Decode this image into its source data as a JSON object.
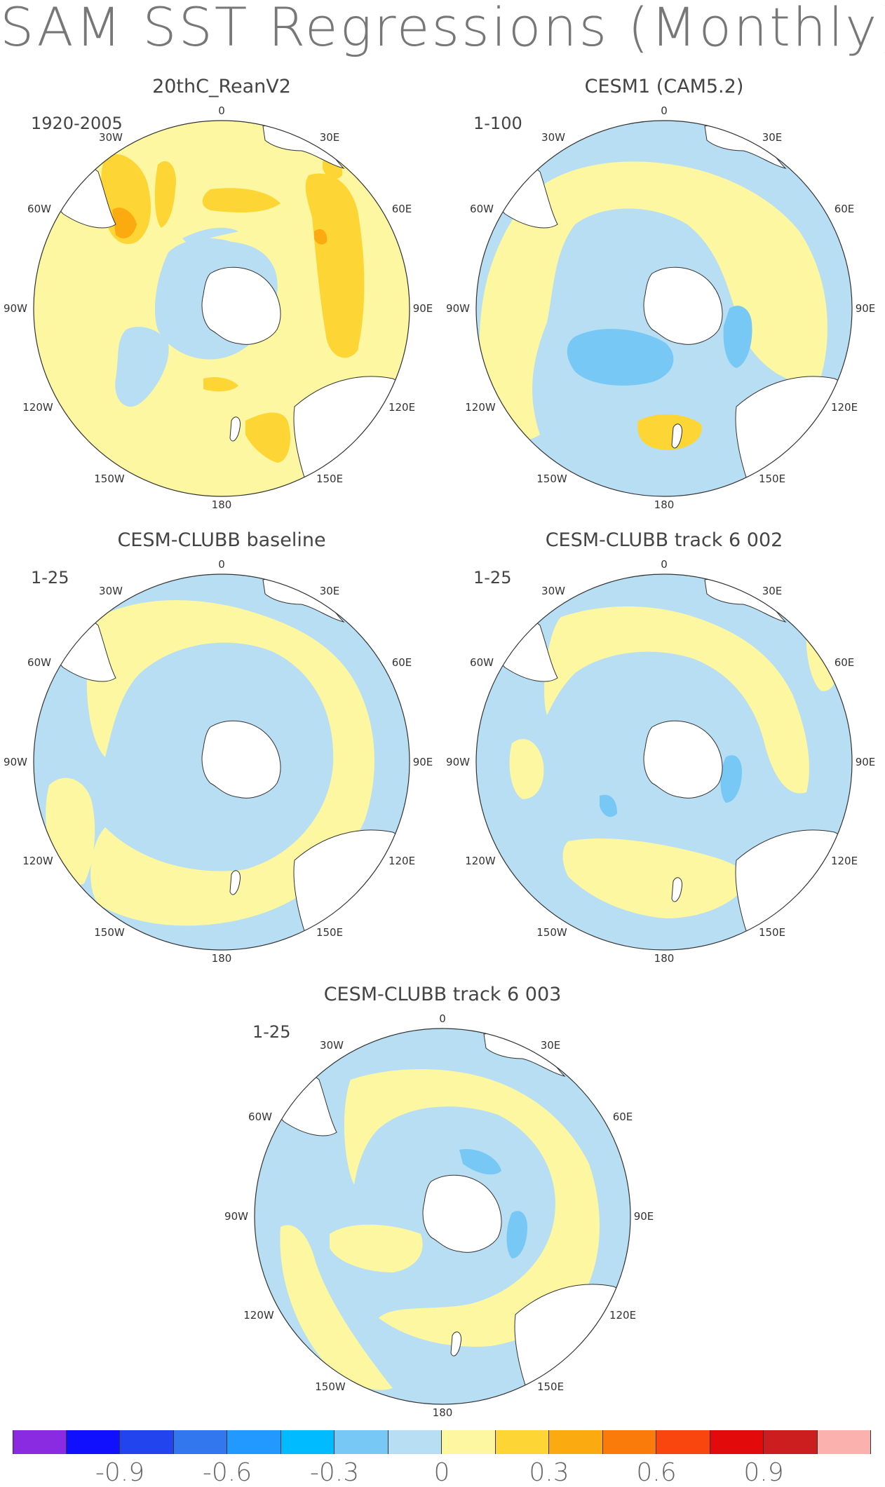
{
  "title": "SAM SST Regressions (Monthly)",
  "panels": [
    {
      "title": "20thC_ReanV2",
      "period": "1920-2005"
    },
    {
      "title": "CESM1 (CAM5.2)",
      "period": "1-100"
    },
    {
      "title": "CESM-CLUBB baseline",
      "period": "1-25"
    },
    {
      "title": "CESM-CLUBB track 6 002",
      "period": "1-25"
    },
    {
      "title": "CESM-CLUBB track 6 003",
      "period": "1-25"
    }
  ],
  "lon_labels": [
    "0",
    "30E",
    "60E",
    "90E",
    "120E",
    "150E",
    "180",
    "150W",
    "120W",
    "90W",
    "60W",
    "30W"
  ],
  "colorbar": {
    "colors": [
      "#8a2be2",
      "#1010ff",
      "#2244ee",
      "#3377ee",
      "#2299ff",
      "#00bbff",
      "#77c8f5",
      "#b7def3",
      "#fcf7a0",
      "#fdd535",
      "#fbaa0f",
      "#fa7a0a",
      "#f9460e",
      "#e20a0a",
      "#cc1e1e",
      "#fbb1ae"
    ],
    "tick_labels": [
      "-0.9",
      "-0.6",
      "-0.3",
      "0",
      "0.3",
      "0.6",
      "0.9"
    ]
  }
}
